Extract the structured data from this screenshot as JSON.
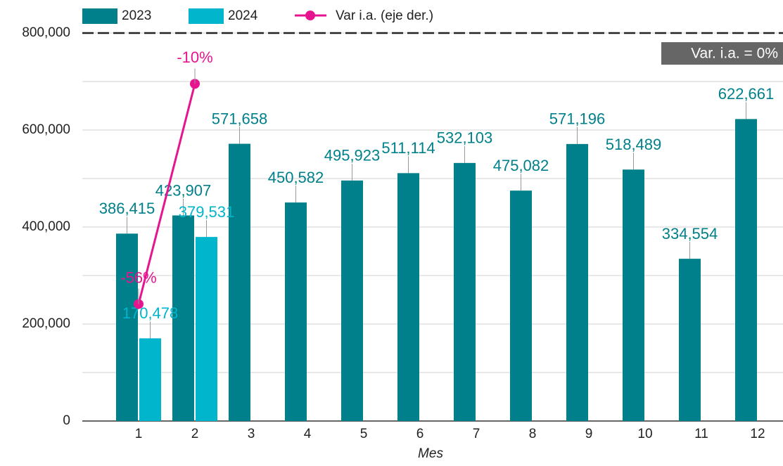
{
  "chart_data": {
    "type": "bar",
    "x_label": "Mes",
    "categories": [
      "1",
      "2",
      "3",
      "4",
      "5",
      "6",
      "7",
      "8",
      "9",
      "10",
      "11",
      "12"
    ],
    "series": [
      {
        "name": "2023",
        "color": "#00808a",
        "values": [
          386415,
          423907,
          571658,
          450582,
          495923,
          511114,
          532103,
          475082,
          571196,
          518489,
          334554,
          622661
        ],
        "value_labels": [
          "386,415",
          "423,907",
          "571,658",
          "450,582",
          "495,923",
          "511,114",
          "532,103",
          "475,082",
          "571,196",
          "518,489",
          "334,554",
          "622,661"
        ]
      },
      {
        "name": "2024",
        "color": "#00b5cc",
        "values": [
          170478,
          379531,
          null,
          null,
          null,
          null,
          null,
          null,
          null,
          null,
          null,
          null
        ],
        "value_labels": [
          "170,478",
          "379,531",
          null,
          null,
          null,
          null,
          null,
          null,
          null,
          null,
          null,
          null
        ]
      },
      {
        "name": "Var i.a. (eje der.)",
        "color": "#e6158f",
        "type": "line",
        "axis": "y2",
        "values": [
          -55.88,
          -10.47,
          null,
          null,
          null,
          null,
          null,
          null,
          null,
          null,
          null,
          null
        ],
        "value_labels": [
          "-56%",
          "-10%",
          null,
          null,
          null,
          null,
          null,
          null,
          null,
          null,
          null,
          null
        ]
      }
    ],
    "ylim": [
      0,
      800000
    ],
    "yticks": [
      {
        "value": 0,
        "label": "0"
      },
      {
        "value": 200000,
        "label": "200,000"
      },
      {
        "value": 400000,
        "label": "400,000"
      },
      {
        "value": 600000,
        "label": "600,000"
      },
      {
        "value": 800000,
        "label": "800,000"
      }
    ],
    "y2lim": [
      -80,
      0
    ],
    "reference_line": {
      "axis": "y2",
      "value": 0,
      "label": "Var. i.a. = 0%"
    },
    "grid": true,
    "legend": "top"
  }
}
